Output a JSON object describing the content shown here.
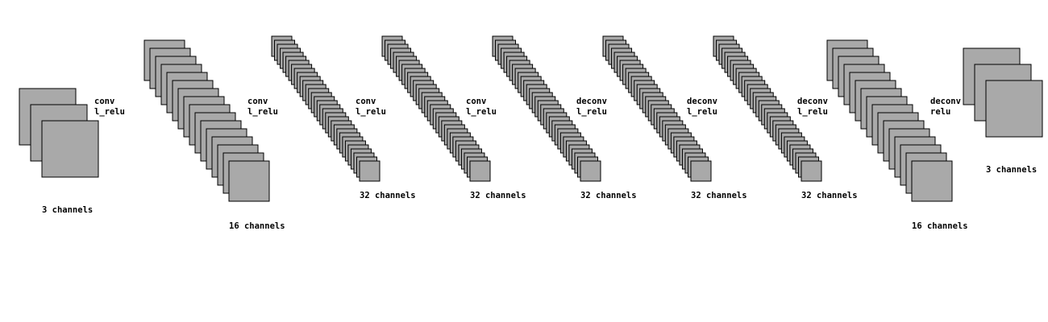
{
  "diagram": {
    "colors": {
      "map_fill": "#a9a9a9",
      "map_stroke": "#000000",
      "background": "#ffffff"
    },
    "layers": [
      {
        "id": "input",
        "channels_label": "3 channels",
        "map_count": 3
      },
      {
        "id": "layer1",
        "channels_label": "16 channels",
        "map_count": 16
      },
      {
        "id": "layer2",
        "channels_label": "32 channels",
        "map_count": 32
      },
      {
        "id": "layer3",
        "channels_label": "32 channels",
        "map_count": 32
      },
      {
        "id": "layer4",
        "channels_label": "32 channels",
        "map_count": 32
      },
      {
        "id": "layer5",
        "channels_label": "32 channels",
        "map_count": 32
      },
      {
        "id": "layer6",
        "channels_label": "32 channels",
        "map_count": 32
      },
      {
        "id": "layer7",
        "channels_label": "16 channels",
        "map_count": 16
      },
      {
        "id": "output",
        "channels_label": "3 channels",
        "map_count": 3
      }
    ],
    "operations": [
      {
        "line1": "conv",
        "line2": "l_relu"
      },
      {
        "line1": "conv",
        "line2": "l_relu"
      },
      {
        "line1": "conv",
        "line2": "l_relu"
      },
      {
        "line1": "conv",
        "line2": "l_relu"
      },
      {
        "line1": "deconv",
        "line2": "l_relu"
      },
      {
        "line1": "deconv",
        "line2": "l_relu"
      },
      {
        "line1": "deconv",
        "line2": "l_relu"
      },
      {
        "line1": "deconv",
        "line2": "relu"
      }
    ]
  }
}
